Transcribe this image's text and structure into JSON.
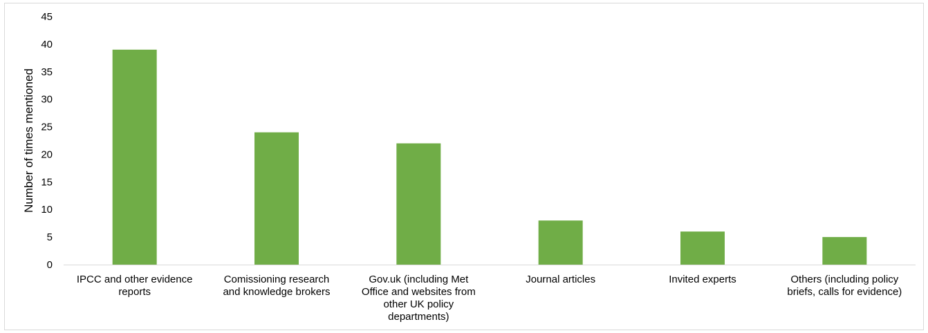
{
  "chart_data": {
    "type": "bar",
    "title": "",
    "xlabel": "",
    "ylabel": "Number of times mentioned",
    "ylim": [
      0,
      45
    ],
    "yticks": [
      0,
      5,
      10,
      15,
      20,
      25,
      30,
      35,
      40,
      45
    ],
    "grid": false,
    "legend": "none",
    "bar_color": "#70ad47",
    "categories": [
      [
        "IPCC and other evidence",
        "reports"
      ],
      [
        "Comissioning research",
        "and knowledge brokers"
      ],
      [
        "Gov.uk (including Met",
        "Office and websites from",
        "other UK policy",
        "departments)"
      ],
      [
        "Journal articles"
      ],
      [
        "Invited experts"
      ],
      [
        "Others (including policy",
        "briefs, calls for evidence)"
      ]
    ],
    "values": [
      39,
      24,
      22,
      8,
      6,
      5
    ]
  }
}
